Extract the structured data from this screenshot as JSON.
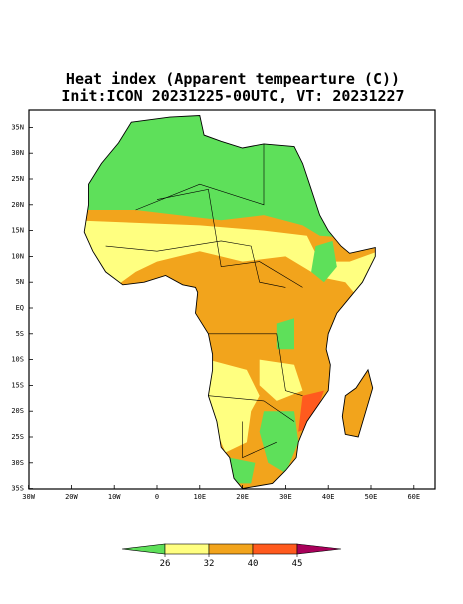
{
  "map": {
    "title": "Heat index (Apparent tempearture (C))",
    "subtitle": "Init:ICON 20231225-00UTC, VT: 20231227",
    "lat_ticks": [
      {
        "value": 35,
        "label": "35N"
      },
      {
        "value": 30,
        "label": "30N"
      },
      {
        "value": 25,
        "label": "25N"
      },
      {
        "value": 20,
        "label": "20N"
      },
      {
        "value": 15,
        "label": "15N"
      },
      {
        "value": 10,
        "label": "10N"
      },
      {
        "value": 5,
        "label": "5N"
      },
      {
        "value": 0,
        "label": "EQ"
      },
      {
        "value": -5,
        "label": "5S"
      },
      {
        "value": -10,
        "label": "10S"
      },
      {
        "value": -15,
        "label": "15S"
      },
      {
        "value": -20,
        "label": "20S"
      },
      {
        "value": -25,
        "label": "25S"
      },
      {
        "value": -30,
        "label": "30S"
      },
      {
        "value": -35,
        "label": "35S"
      }
    ],
    "lon_ticks": [
      {
        "value": -30,
        "label": "30W"
      },
      {
        "value": -20,
        "label": "20W"
      },
      {
        "value": -10,
        "label": "10W"
      },
      0,
      {
        "value": 10,
        "label": "10E"
      },
      {
        "value": 20,
        "label": "20E"
      },
      {
        "value": 30,
        "label": "30E"
      },
      {
        "value": 40,
        "label": "40E"
      },
      {
        "value": 50,
        "label": "50E"
      },
      {
        "value": 60,
        "label": "60E"
      }
    ],
    "colorbar": {
      "ticks": [
        26,
        32,
        40,
        45
      ],
      "colors": [
        "#5ee05a",
        "#ffff80",
        "#f2a41c",
        "#ff5a1e",
        "#a8005a"
      ]
    }
  }
}
